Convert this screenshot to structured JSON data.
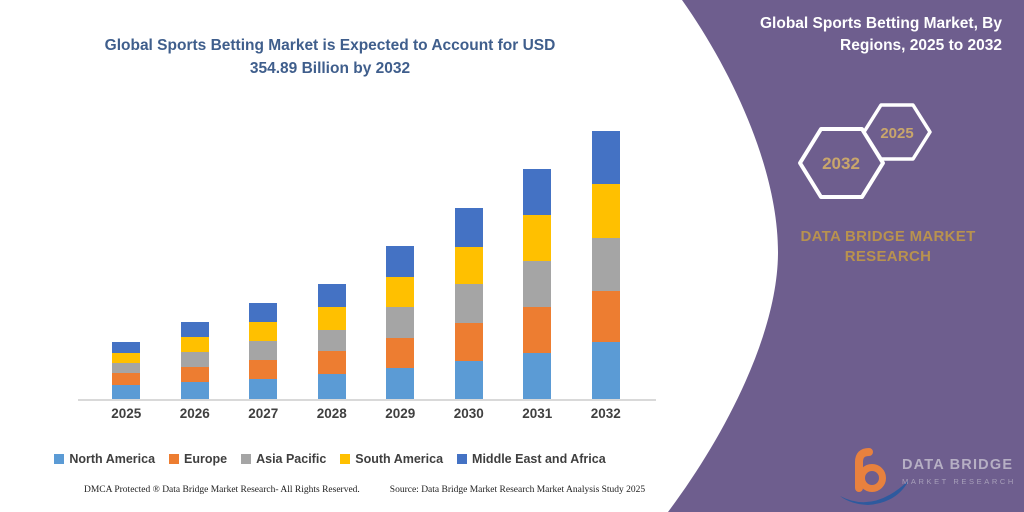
{
  "chart": {
    "title_lines": [
      "Global Sports Betting Market is Expected to Account for USD",
      "354.89 Billion by 2032"
    ],
    "title_color": "#3F5E8C"
  },
  "chart_data": {
    "type": "bar",
    "stacked": true,
    "title": "Global Sports Betting Market is Expected to Account for USD 354.89 Billion by 2032",
    "unit": "USD Billion (estimated from bar heights; 2032 total labeled 354.89)",
    "categories": [
      "2025",
      "2026",
      "2027",
      "2028",
      "2029",
      "2030",
      "2031",
      "2032"
    ],
    "series": [
      {
        "name": "North America",
        "color": "#5B9BD5",
        "values": [
          18.5,
          23,
          26.5,
          33,
          41,
          50.5,
          61,
          75
        ]
      },
      {
        "name": "Europe",
        "color": "#ED7D31",
        "values": [
          15.5,
          20,
          25,
          31,
          40,
          50.5,
          60.5,
          68
        ]
      },
      {
        "name": "Asia Pacific",
        "color": "#A5A5A5",
        "values": [
          13.5,
          19.5,
          25,
          27,
          41,
          51,
          61,
          70
        ]
      },
      {
        "name": "South America",
        "color": "#FFC000",
        "values": [
          14,
          19.5,
          25,
          31,
          40,
          50,
          60.5,
          72
        ]
      },
      {
        "name": "Middle East and Africa",
        "color": "#4472C4",
        "values": [
          14,
          19.5,
          25,
          30,
          40,
          50.5,
          61,
          69.89
        ]
      }
    ],
    "totals": [
      75.5,
      101.5,
      126.5,
      152,
      202,
      252.5,
      304,
      354.89
    ],
    "xlabel": "",
    "ylabel": "",
    "ylim": [
      0,
      355
    ],
    "gridlines": false,
    "y_axis_visible": false,
    "legend_position": "bottom",
    "axis_line_color": "#D9D9D9"
  },
  "panel": {
    "background": "#6E5E8E",
    "title_lines": [
      "Global Sports Betting Market, By",
      "Regions, 2025 to 2032"
    ],
    "hexagon_back": {
      "label": "2032"
    },
    "hexagon_front": {
      "label": "2025"
    },
    "year_color": "#C9A66B",
    "brand_lines": [
      "DATA BRIDGE MARKET",
      "RESEARCH"
    ],
    "brand_color": "#B8924F",
    "logo": {
      "primary": "DATA BRIDGE",
      "secondary": "MARKET RESEARCH"
    }
  },
  "footer": {
    "left": "DMCA Protected ® Data Bridge Market Research-  All Rights Reserved.",
    "right": "Source: Data Bridge Market Research  Market Analysis Study 2025"
  }
}
